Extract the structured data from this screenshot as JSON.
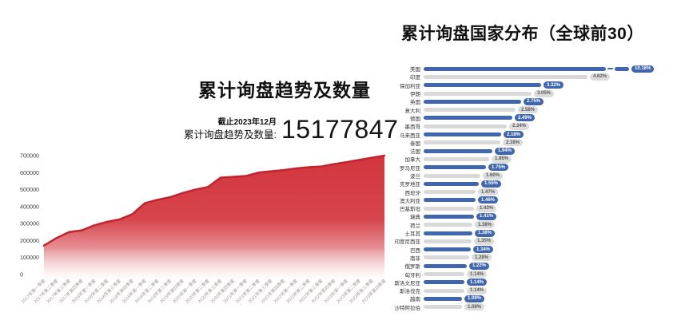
{
  "left_chart": {
    "title": "累计询盘趋势及数量",
    "asof_label": "截止2023年12月",
    "total_label": "累计询盘趋势及数量:",
    "total_value": "15177847"
  },
  "right_chart": {
    "title": "累计询盘国家分布（全球前30）"
  },
  "colors": {
    "area_fill": "#d3353e",
    "area_line": "#c2242d",
    "bar_blue": "#4066ae",
    "bar_gray": "#d9d9d9",
    "pill_blue_text": "#ffffff",
    "pill_gray_bg": "#dcdcdc",
    "pill_gray_text": "#595959",
    "axis_tick_text": "#3d3d3d",
    "x_label_text": "#a59494"
  },
  "chart_data": [
    {
      "type": "area",
      "title": "累计询盘趋势及数量",
      "x": [
        "2017年第一季度",
        "2017年第二季度",
        "2017年第三季度",
        "2017年第四季度",
        "2018年第一季度",
        "2018年第二季度",
        "2018年第三季度",
        "2018年第四季度",
        "2019年第一季度",
        "2019年第二季度",
        "2019年第三季度",
        "2019年第四季度",
        "2020年第一季度",
        "2020年第二季度",
        "2020年第三季度",
        "2020年第四季度",
        "2021年第一季度",
        "2021年第二季度",
        "2021年第三季度",
        "2021年第四季度",
        "2022年第一季度",
        "2022年第二季度",
        "2022年第三季度",
        "2022年第四季度",
        "2023年第一季度",
        "2023年第二季度",
        "2023年第三季度",
        "2023年第四季度"
      ],
      "values": [
        170000,
        215000,
        250000,
        260000,
        290000,
        310000,
        325000,
        355000,
        420000,
        440000,
        455000,
        480000,
        500000,
        515000,
        570000,
        575000,
        580000,
        600000,
        608000,
        615000,
        625000,
        632000,
        636000,
        650000,
        662000,
        675000,
        688000,
        700000
      ],
      "ylim": [
        0,
        700000
      ],
      "yticks": [
        0,
        100000,
        200000,
        300000,
        400000,
        500000,
        600000,
        700000
      ],
      "grid": false,
      "legend": false
    },
    {
      "type": "bar",
      "orientation": "horizontal",
      "title": "累计询盘国家分布（全球前30）",
      "categories": [
        "美国",
        "印度",
        "保加利亚",
        "伊朗",
        "英国",
        "意大利",
        "德国",
        "墨西哥",
        "马来西亚",
        "泰国",
        "法国",
        "加拿大",
        "罗马尼亚",
        "波兰",
        "克罗地亚",
        "西班牙",
        "澳大利亚",
        "巴基斯坦",
        "瑞典",
        "荷兰",
        "土耳其",
        "印度尼西亚",
        "巴西",
        "南非",
        "俄罗斯",
        "匈牙利",
        "斯洛文尼亚",
        "斯洛伐克",
        "越南",
        "沙特阿拉伯"
      ],
      "values": [
        10.18,
        4.62,
        3.32,
        3.05,
        2.75,
        2.58,
        2.49,
        2.34,
        2.18,
        2.16,
        1.94,
        1.85,
        1.75,
        1.6,
        1.55,
        1.47,
        1.46,
        1.43,
        1.41,
        1.38,
        1.38,
        1.35,
        1.34,
        1.28,
        1.22,
        1.14,
        1.14,
        1.14,
        1.09,
        1.08
      ],
      "value_labels": [
        "10.18%",
        "4.62%",
        "3.32%",
        "3.05%",
        "2.75%",
        "2.58%",
        "2.49%",
        "2.34%",
        "2.18%",
        "2.16%",
        "1.94%",
        "1.85%",
        "1.75%",
        "1.60%",
        "1.55%",
        "1.47%",
        "1.46%",
        "1.43%",
        "1.41%",
        "1.38%",
        "1.38%",
        "1.35%",
        "1.34%",
        "1.28%",
        "1.22%",
        "1.14%",
        "1.14%",
        "1.14%",
        "1.09%",
        "1.08%"
      ],
      "axis_break_row": 0,
      "bar_color_pattern": [
        "#4066ae",
        "#d9d9d9"
      ],
      "legend": false
    }
  ]
}
